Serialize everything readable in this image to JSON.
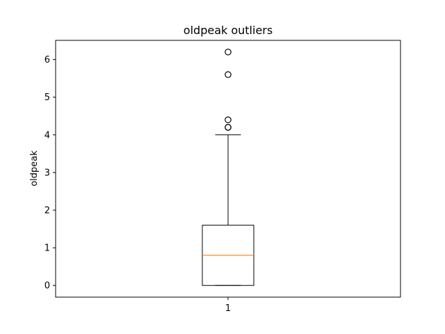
{
  "chart_data": {
    "type": "box",
    "title": "oldpeak outliers",
    "xlabel": "",
    "ylabel": "oldpeak",
    "categories": [
      "1"
    ],
    "ylim": [
      -0.31,
      6.51
    ],
    "yticks": [
      0,
      1,
      2,
      3,
      4,
      5,
      6
    ],
    "ytick_labels": [
      "0",
      "1",
      "2",
      "3",
      "4",
      "5",
      "6"
    ],
    "grid": false,
    "boxes": [
      {
        "category": "1",
        "whisker_low": 0.0,
        "q1": 0.0,
        "median": 0.8,
        "q3": 1.6,
        "whisker_high": 4.0,
        "outliers": [
          4.2,
          4.2,
          4.4,
          5.6,
          6.2
        ]
      }
    ],
    "colors": {
      "box": "#000000",
      "median": "#ff7f0e",
      "outlier": "#000000"
    }
  }
}
